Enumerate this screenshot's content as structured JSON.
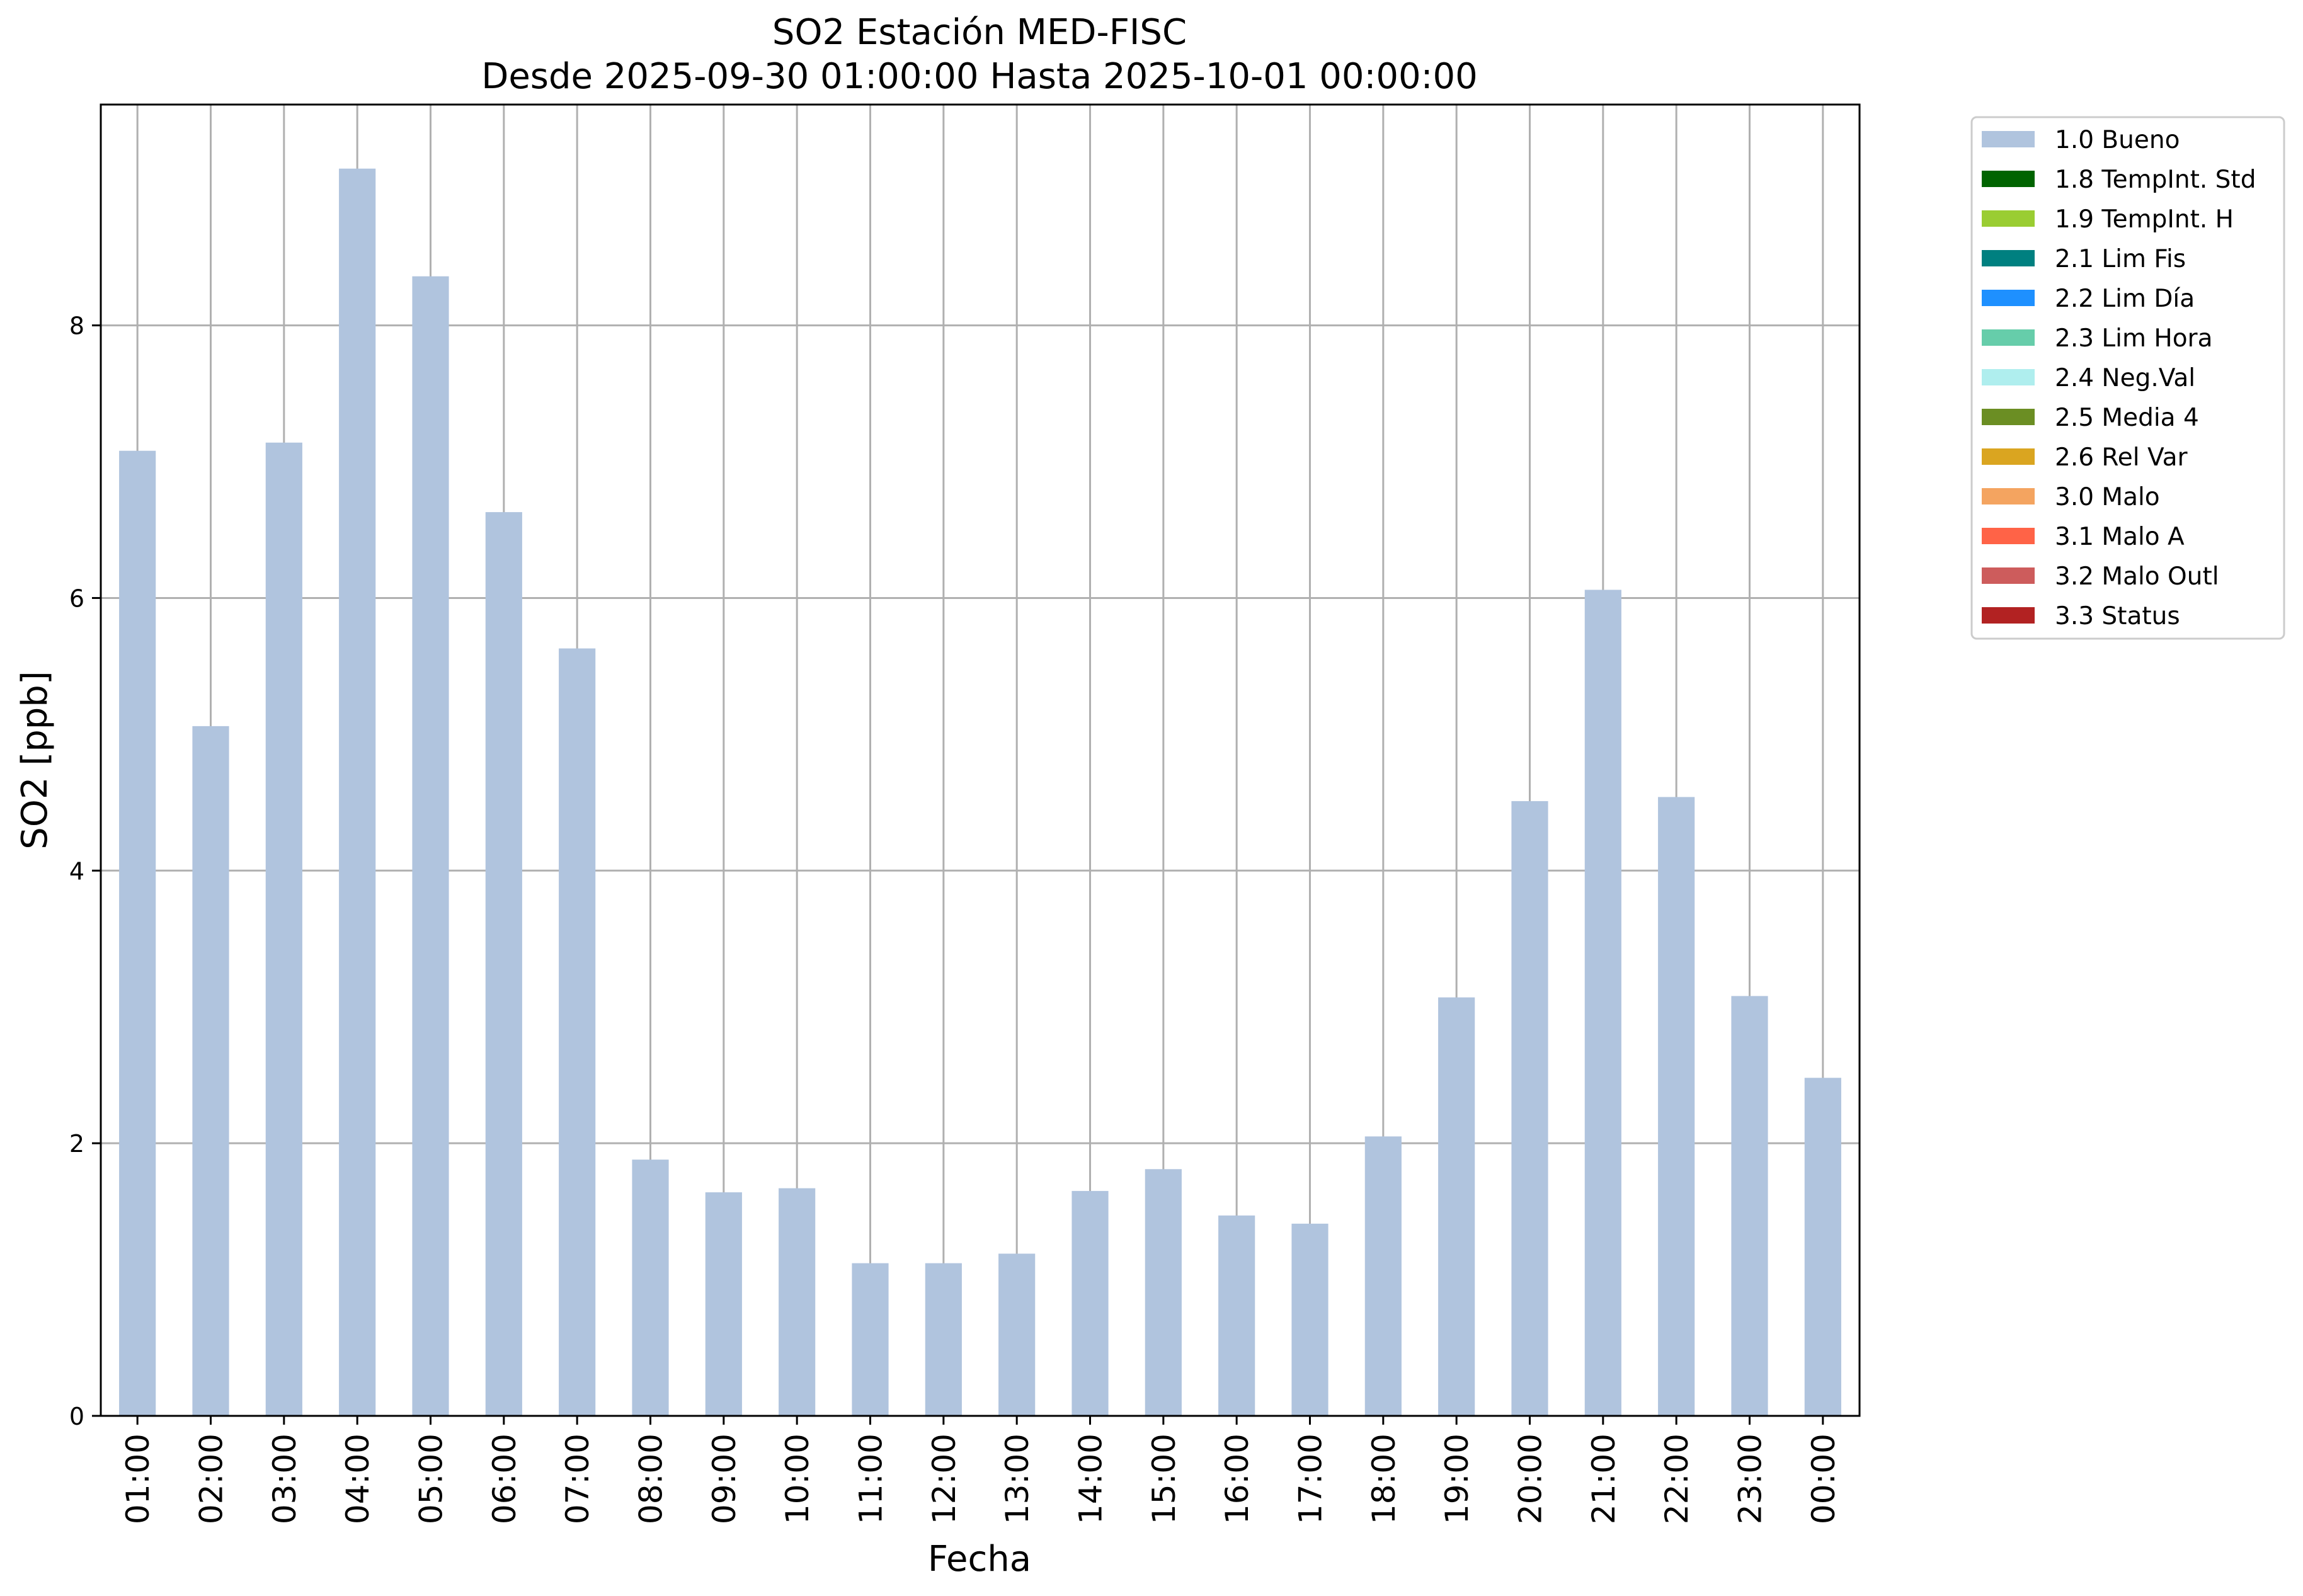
{
  "chart_data": {
    "type": "bar",
    "title_line1": "SO2 Estación MED-FISC",
    "title_line2": "Desde 2025-09-30 01:00:00 Hasta 2025-10-01 00:00:00",
    "xlabel": "Fecha",
    "ylabel": "SO2 [ppb]",
    "ylim": [
      0,
      9.62
    ],
    "yticks": [
      0,
      2,
      4,
      6,
      8
    ],
    "grid": true,
    "legend_position": "outside-top-right",
    "categories": [
      "01:00",
      "02:00",
      "03:00",
      "04:00",
      "05:00",
      "06:00",
      "07:00",
      "08:00",
      "09:00",
      "10:00",
      "11:00",
      "12:00",
      "13:00",
      "14:00",
      "15:00",
      "16:00",
      "17:00",
      "18:00",
      "19:00",
      "20:00",
      "21:00",
      "22:00",
      "23:00",
      "00:00"
    ],
    "series": [
      {
        "name": "1.0 Bueno",
        "color": "#b0c4de",
        "values": [
          7.08,
          5.06,
          7.14,
          9.15,
          8.36,
          6.63,
          5.63,
          1.88,
          1.64,
          1.67,
          1.12,
          1.12,
          1.19,
          1.65,
          1.81,
          1.47,
          1.41,
          2.05,
          3.07,
          4.51,
          6.06,
          4.54,
          3.08,
          2.48
        ]
      }
    ],
    "legend": [
      {
        "label": "1.0 Bueno",
        "color": "#b0c4de"
      },
      {
        "label": "1.8 TempInt. Std",
        "color": "#006400"
      },
      {
        "label": "1.9 TempInt. H",
        "color": "#9acd32"
      },
      {
        "label": "2.1 Lim Fis",
        "color": "#008080"
      },
      {
        "label": "2.2 Lim Día",
        "color": "#1e90ff"
      },
      {
        "label": "2.3 Lim Hora",
        "color": "#66cdaa"
      },
      {
        "label": "2.4 Neg.Val",
        "color": "#afeeee"
      },
      {
        "label": "2.5 Media 4",
        "color": "#6b8e23"
      },
      {
        "label": "2.6 Rel Var",
        "color": "#daa520"
      },
      {
        "label": "3.0 Malo",
        "color": "#f4a460"
      },
      {
        "label": "3.1 Malo A",
        "color": "#ff6347"
      },
      {
        "label": "3.2 Malo Outl",
        "color": "#cd5c5c"
      },
      {
        "label": "3.3 Status",
        "color": "#b22222"
      }
    ]
  }
}
